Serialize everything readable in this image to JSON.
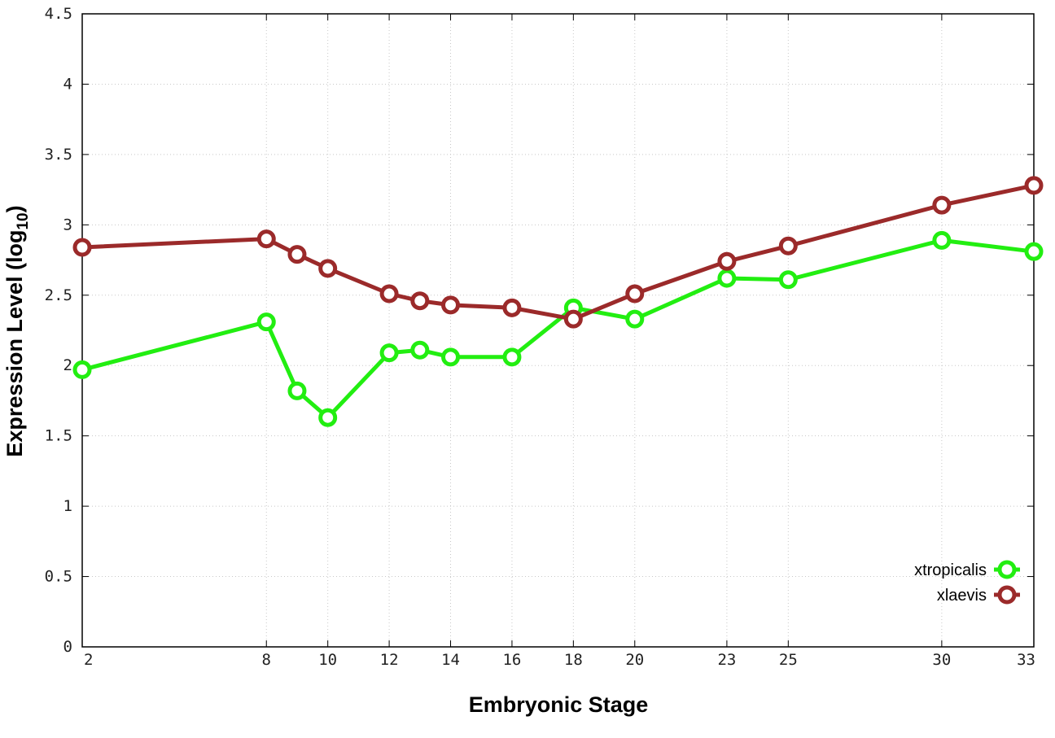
{
  "chart_data": {
    "type": "line",
    "xlabel": "Embryonic Stage",
    "ylabel": {
      "prefix": "Expression Level (log",
      "subscript": "10",
      "suffix": ")"
    },
    "x": [
      2,
      8,
      9,
      10,
      12,
      13,
      14,
      16,
      18,
      20,
      23,
      25,
      30,
      33
    ],
    "xticks": [
      2,
      8,
      10,
      12,
      14,
      16,
      18,
      20,
      23,
      25,
      30,
      33
    ],
    "ylim": [
      0,
      4.5
    ],
    "yticks": [
      "0",
      "0.5",
      "1",
      "1.5",
      "2",
      "2.5",
      "3",
      "3.5",
      "4",
      "4.5"
    ],
    "grid": true,
    "legend_position": "bottom-right",
    "series": [
      {
        "name": "xtropicalis",
        "color": "#22ee11",
        "marker": "open-circle",
        "values": [
          1.97,
          2.31,
          1.82,
          1.63,
          2.09,
          2.11,
          2.06,
          2.06,
          2.41,
          2.33,
          2.62,
          2.61,
          2.89,
          2.81
        ]
      },
      {
        "name": "xlaevis",
        "color": "#9b2a2a",
        "marker": "open-circle",
        "values": [
          2.84,
          2.9,
          2.79,
          2.69,
          2.51,
          2.46,
          2.43,
          2.41,
          2.33,
          2.51,
          2.74,
          2.85,
          3.14,
          3.28
        ]
      }
    ]
  }
}
